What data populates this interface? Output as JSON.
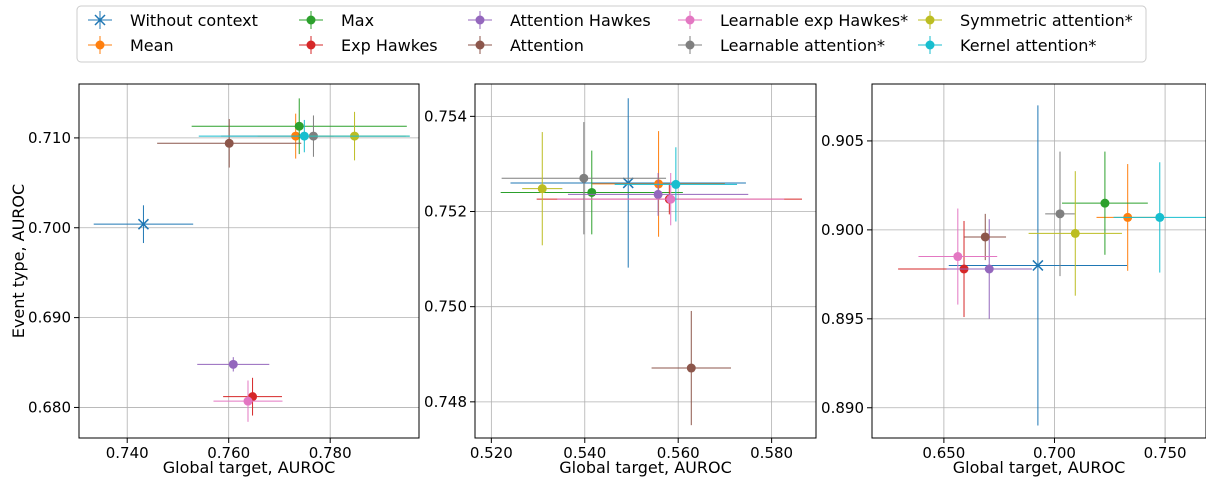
{
  "legend": {
    "placement": "top-center",
    "entries": [
      {
        "name": "Without context",
        "color": "#1f77b4",
        "marker": "x"
      },
      {
        "name": "Mean",
        "color": "#ff7f0e",
        "marker": "o"
      },
      {
        "name": "Max",
        "color": "#2ca02c",
        "marker": "o"
      },
      {
        "name": "Exp Hawkes",
        "color": "#d62728",
        "marker": "o"
      },
      {
        "name": "Attention Hawkes",
        "color": "#9467bd",
        "marker": "o"
      },
      {
        "name": "Attention",
        "color": "#8c564b",
        "marker": "o"
      },
      {
        "name": "Learnable exp Hawkes*",
        "color": "#e377c2",
        "marker": "o"
      },
      {
        "name": "Learnable attention*",
        "color": "#7f7f7f",
        "marker": "o"
      },
      {
        "name": "Symmetric attention*",
        "color": "#bcbd22",
        "marker": "o"
      },
      {
        "name": "Kernel attention*",
        "color": "#17becf",
        "marker": "o"
      }
    ]
  },
  "chart_data": [
    {
      "type": "scatter",
      "xlabel": "Global target, AUROC",
      "ylabel": "Event type, AUROC",
      "xlim": [
        0.7305,
        0.7975
      ],
      "ylim": [
        0.6766,
        0.716
      ],
      "xticks": [
        "0.740",
        "0.760",
        "0.780"
      ],
      "yticks": [
        "0.680",
        "0.690",
        "0.700",
        "0.710"
      ],
      "xtick_values": [
        0.74,
        0.76,
        0.78
      ],
      "ytick_values": [
        0.68,
        0.69,
        0.7,
        0.71
      ],
      "grid": true,
      "points": [
        {
          "series": "Without context",
          "x": 0.7432,
          "xerr": 0.0098,
          "y": 0.7004,
          "yerr": 0.0021
        },
        {
          "series": "Mean",
          "x": 0.7732,
          "xerr": 0.0075,
          "y": 0.7102,
          "yerr": 0.0025
        },
        {
          "series": "Max",
          "x": 0.7739,
          "xerr": 0.0212,
          "y": 0.7113,
          "yerr": 0.0031
        },
        {
          "series": "Exp Hawkes",
          "x": 0.7647,
          "xerr": 0.0058,
          "y": 0.6812,
          "yerr": 0.0021
        },
        {
          "series": "Attention Hawkes",
          "x": 0.7609,
          "xerr": 0.0071,
          "y": 0.6848,
          "yerr": 0.0008
        },
        {
          "series": "Attention",
          "x": 0.7601,
          "xerr": 0.0142,
          "y": 0.7094,
          "yerr": 0.0027
        },
        {
          "series": "Learnable exp Hawkes*",
          "x": 0.7638,
          "xerr": 0.0068,
          "y": 0.6807,
          "yerr": 0.0023
        },
        {
          "series": "Learnable attention*",
          "x": 0.7767,
          "xerr": 0.0182,
          "y": 0.7102,
          "yerr": 0.0023
        },
        {
          "series": "Symmetric attention*",
          "x": 0.7848,
          "xerr": 0.0108,
          "y": 0.7102,
          "yerr": 0.0027
        },
        {
          "series": "Kernel attention*",
          "x": 0.7749,
          "xerr": 0.0208,
          "y": 0.7102,
          "yerr": 0.0018
        }
      ]
    },
    {
      "type": "scatter",
      "xlabel": "Global target, AUROC",
      "ylabel": "",
      "xlim": [
        0.5165,
        0.5895
      ],
      "ylim": [
        0.74724,
        0.75468
      ],
      "xticks": [
        "0.520",
        "0.540",
        "0.560",
        "0.580"
      ],
      "yticks": [
        "0.748",
        "0.750",
        "0.752",
        "0.754"
      ],
      "xtick_values": [
        0.52,
        0.54,
        0.56,
        0.58
      ],
      "ytick_values": [
        0.748,
        0.75,
        0.752,
        0.754
      ],
      "grid": true,
      "points": [
        {
          "series": "Without context",
          "x": 0.5493,
          "xerr": 0.0252,
          "y": 0.7526,
          "yerr": 0.00178
        },
        {
          "series": "Mean",
          "x": 0.5558,
          "xerr": 0.0142,
          "y": 0.75258,
          "yerr": 0.00111
        },
        {
          "series": "Max",
          "x": 0.5415,
          "xerr": 0.0195,
          "y": 0.7524,
          "yerr": 0.00088
        },
        {
          "series": "Exp Hawkes",
          "x": 0.5581,
          "xerr": 0.0284,
          "y": 0.75226,
          "yerr": 0.00032
        },
        {
          "series": "Attention Hawkes",
          "x": 0.5557,
          "xerr": 0.0193,
          "y": 0.75236,
          "yerr": 0.00045
        },
        {
          "series": "Attention",
          "x": 0.5628,
          "xerr": 0.0085,
          "y": 0.74871,
          "yerr": 0.0012
        },
        {
          "series": "Learnable exp Hawkes*",
          "x": 0.5584,
          "xerr": 0.0243,
          "y": 0.75226,
          "yerr": 0.00055
        },
        {
          "series": "Learnable attention*",
          "x": 0.5398,
          "xerr": 0.0176,
          "y": 0.7527,
          "yerr": 0.00118
        },
        {
          "series": "Symmetric attention*",
          "x": 0.5309,
          "xerr": 0.0043,
          "y": 0.75248,
          "yerr": 0.00119
        },
        {
          "series": "Kernel attention*",
          "x": 0.5595,
          "xerr": 0.0131,
          "y": 0.75257,
          "yerr": 0.00078
        }
      ]
    },
    {
      "type": "scatter",
      "xlabel": "Global target, AUROC",
      "ylabel": "",
      "xlim": [
        0.6175,
        0.7685
      ],
      "ylim": [
        0.8883,
        0.9082
      ],
      "xticks": [
        "0.650",
        "0.700",
        "0.750"
      ],
      "yticks": [
        "0.890",
        "0.895",
        "0.900",
        "0.905"
      ],
      "xtick_values": [
        0.65,
        0.7,
        0.75
      ],
      "ytick_values": [
        0.89,
        0.895,
        0.9,
        0.905
      ],
      "grid": true,
      "points": [
        {
          "series": "Without context",
          "x": 0.6925,
          "xerr": 0.0403,
          "y": 0.898,
          "yerr": 0.009
        },
        {
          "series": "Mean",
          "x": 0.7331,
          "xerr": 0.0141,
          "y": 0.9007,
          "yerr": 0.003
        },
        {
          "series": "Max",
          "x": 0.7228,
          "xerr": 0.0194,
          "y": 0.9015,
          "yerr": 0.0029
        },
        {
          "series": "Exp Hawkes",
          "x": 0.6591,
          "xerr": 0.0298,
          "y": 0.8978,
          "yerr": 0.0027
        },
        {
          "series": "Attention Hawkes",
          "x": 0.6705,
          "xerr": 0.0193,
          "y": 0.8978,
          "yerr": 0.0028
        },
        {
          "series": "Attention",
          "x": 0.6687,
          "xerr": 0.0094,
          "y": 0.8996,
          "yerr": 0.0013
        },
        {
          "series": "Learnable exp Hawkes*",
          "x": 0.6563,
          "xerr": 0.0178,
          "y": 0.8985,
          "yerr": 0.0027
        },
        {
          "series": "Learnable attention*",
          "x": 0.7025,
          "xerr": 0.0067,
          "y": 0.9009,
          "yerr": 0.0035
        },
        {
          "series": "Symmetric attention*",
          "x": 0.7094,
          "xerr": 0.0211,
          "y": 0.8998,
          "yerr": 0.0035
        },
        {
          "series": "Kernel attention*",
          "x": 0.7476,
          "xerr": 0.0209,
          "y": 0.9007,
          "yerr": 0.0031
        }
      ]
    }
  ]
}
